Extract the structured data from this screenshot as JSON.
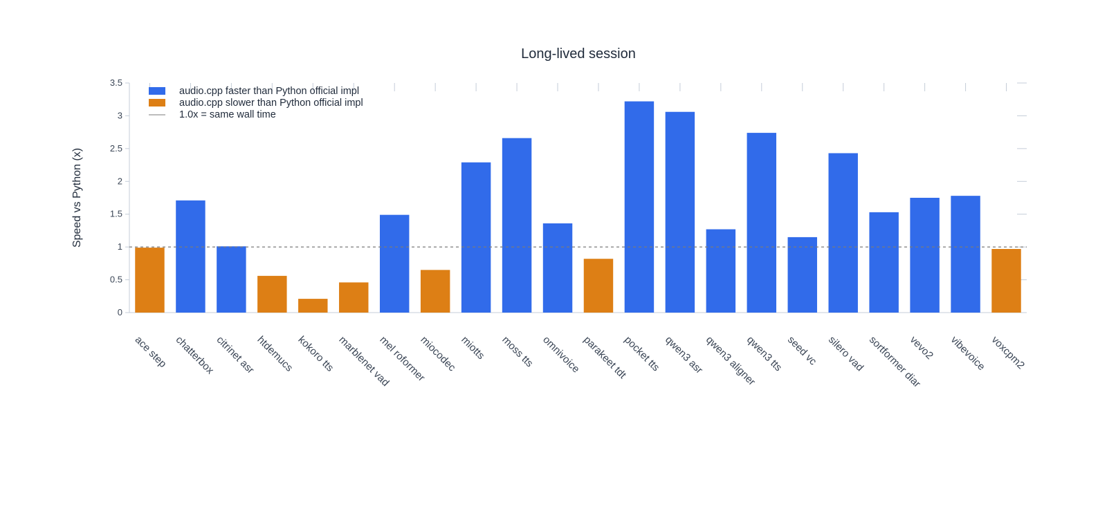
{
  "chart_data": {
    "type": "bar",
    "title": "Long-lived session",
    "xlabel": "",
    "ylabel": "Speed vs Python (x)",
    "ylim": [
      0,
      3.5
    ],
    "yticks": [
      "0",
      "0.5",
      "1",
      "1.5",
      "2",
      "2.5",
      "3",
      "3.5"
    ],
    "reference_line": 1.0,
    "grid": false,
    "legend_position": "top-left",
    "categories": [
      "ace step",
      "chatterbox",
      "citrinet asr",
      "htdemucs",
      "kokoro tts",
      "marblenet vad",
      "mel roformer",
      "miocodec",
      "miotts",
      "moss tts",
      "omnivoice",
      "parakeet tdt",
      "pocket tts",
      "qwen3 asr",
      "qwen3 aligner",
      "qwen3 tts",
      "seed vc",
      "silero vad",
      "sortformer diar",
      "vevo2",
      "vibevoice",
      "voxcpm2"
    ],
    "values": [
      0.99,
      1.71,
      1.01,
      0.56,
      0.21,
      0.46,
      1.49,
      0.65,
      2.29,
      2.66,
      1.36,
      0.82,
      3.22,
      3.06,
      1.27,
      2.74,
      1.15,
      2.43,
      1.53,
      1.75,
      1.78,
      0.97
    ],
    "legend": [
      {
        "label": "audio.cpp faster than Python official impl",
        "color": "#316bea",
        "kind": "bar"
      },
      {
        "label": "audio.cpp slower than Python official impl",
        "color": "#dd7f15",
        "kind": "bar"
      },
      {
        "label": "1.0x = same wall time",
        "color": "#7a7a7a",
        "kind": "line"
      }
    ],
    "colors": {
      "faster": "#316bea",
      "slower": "#dd7f15",
      "reference": "#7a7a7a",
      "axis": "#c4ccd8"
    }
  }
}
